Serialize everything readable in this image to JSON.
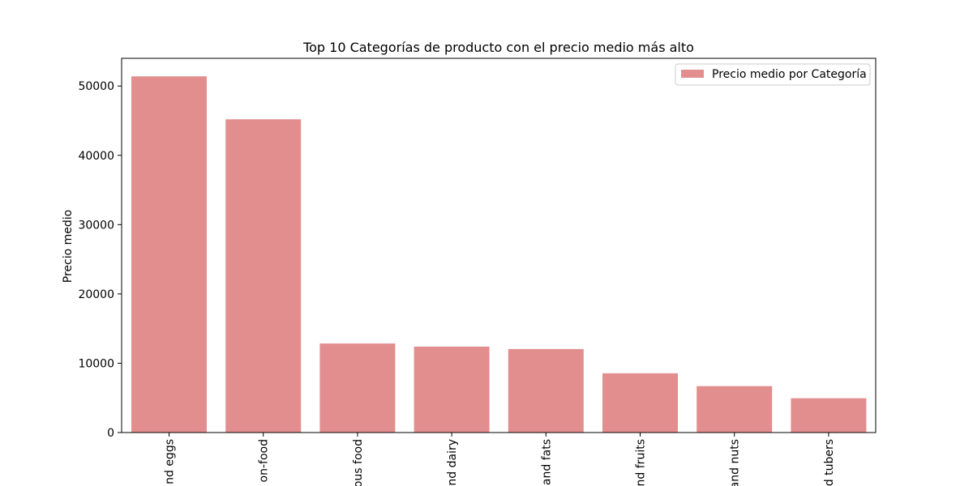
{
  "chart_data": {
    "type": "bar",
    "title": "Top 10 Categorías de producto con el precio medio más alto",
    "xlabel": "",
    "ylabel": "Precio medio",
    "categories": [
      "nd eggs",
      "on-food",
      "ous food",
      "nd dairy",
      "and fats",
      "nd fruits",
      "and nuts",
      "d tubers"
    ],
    "series": [
      {
        "name": "Precio medio por Categoría",
        "values": [
          51400,
          45200,
          12850,
          12400,
          12050,
          8550,
          6700,
          4950
        ]
      }
    ],
    "ylim": [
      0,
      54000
    ],
    "yticks": [
      0,
      10000,
      20000,
      30000,
      40000,
      50000
    ],
    "ytick_labels": [
      "0",
      "10000",
      "20000",
      "30000",
      "40000",
      "50000"
    ],
    "grid": false,
    "legend_position": "top-right",
    "bar_color": "#e28e8e"
  }
}
